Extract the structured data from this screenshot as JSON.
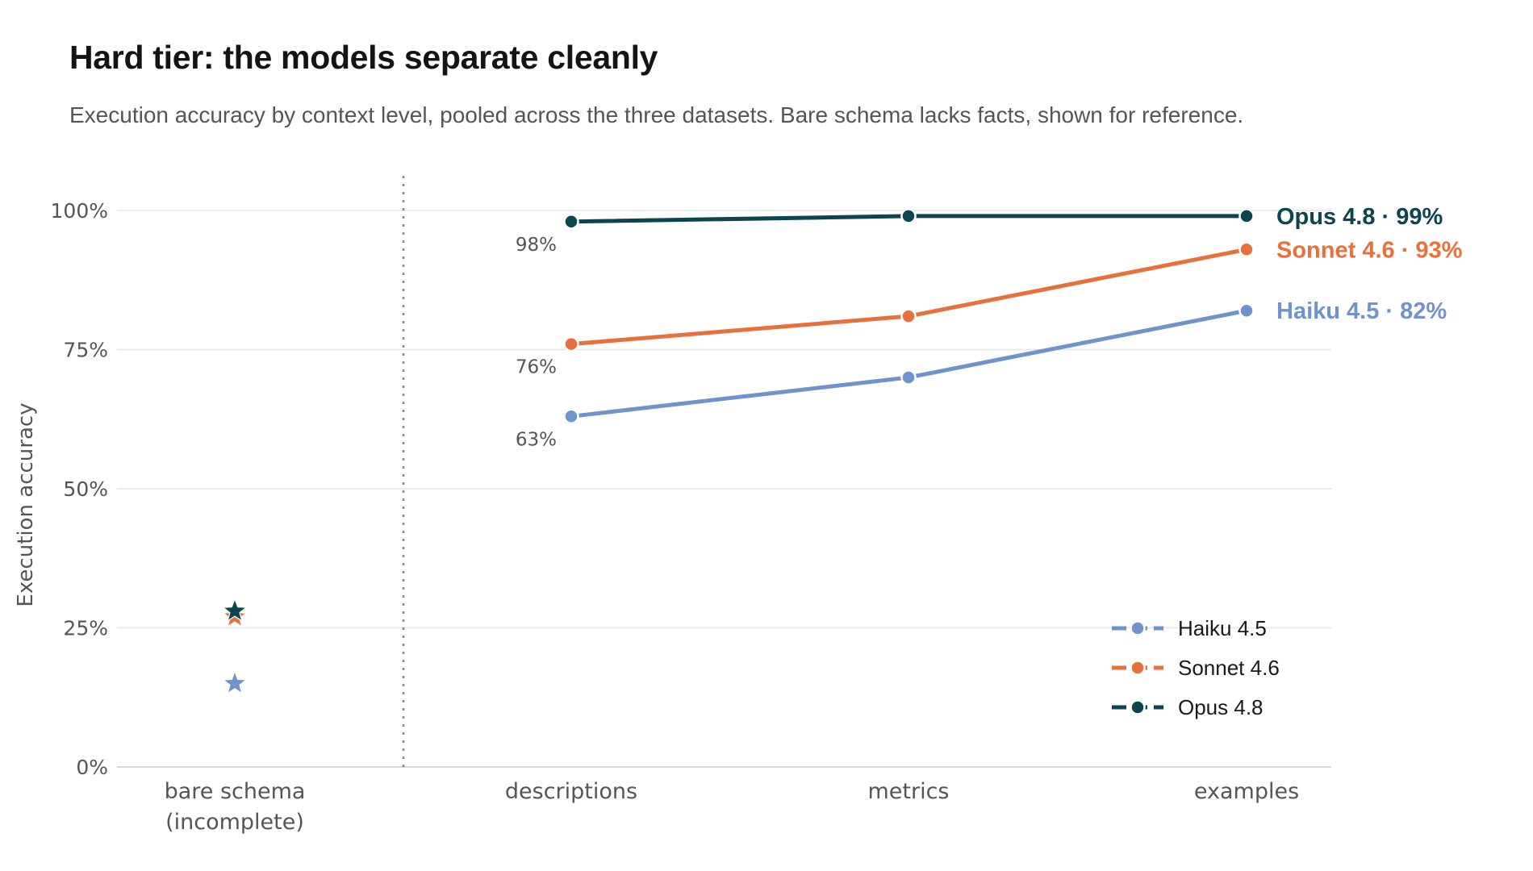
{
  "chart_data": {
    "type": "line",
    "title": "Hard tier: the models separate cleanly",
    "subtitle": "Execution accuracy by context level, pooled across the three datasets. Bare schema lacks facts, shown for reference.",
    "ylabel": "Execution accuracy",
    "ylim": [
      0,
      100
    ],
    "yticks": [
      "0%",
      "25%",
      "50%",
      "75%",
      "100%"
    ],
    "reference": {
      "category": [
        "bare schema",
        "(incomplete)"
      ],
      "marker": "star"
    },
    "categories": [
      "descriptions",
      "metrics",
      "examples"
    ],
    "series": [
      {
        "name": "Haiku 4.5",
        "color": "#6f93cc",
        "values": [
          63,
          70,
          82
        ],
        "reference_value": 15,
        "start_label": "63%",
        "end_label": "Haiku 4.5 · 82%"
      },
      {
        "name": "Sonnet 4.6",
        "color": "#e8703a",
        "values": [
          76,
          81,
          93
        ],
        "reference_value": 27,
        "start_label": "76%",
        "end_label": "Sonnet 4.6 · 93%"
      },
      {
        "name": "Opus 4.8",
        "color": "#0b4550",
        "values": [
          98,
          99,
          99
        ],
        "reference_value": 28,
        "start_label": "98%",
        "end_label": "Opus 4.8 · 99%"
      }
    ],
    "grid": true,
    "legend": "bottom-right"
  }
}
